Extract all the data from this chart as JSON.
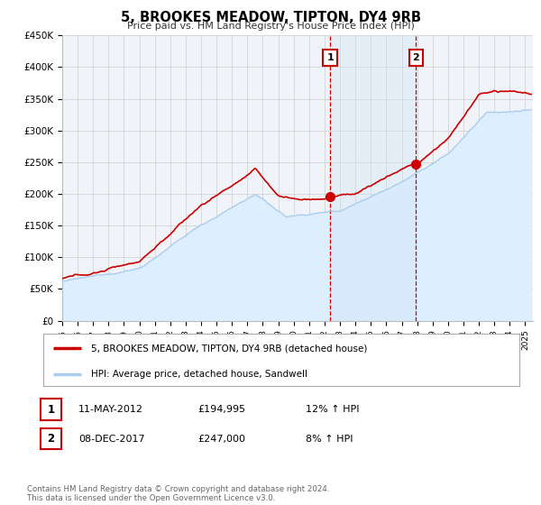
{
  "title": "5, BROOKES MEADOW, TIPTON, DY4 9RB",
  "subtitle": "Price paid vs. HM Land Registry's House Price Index (HPI)",
  "ylim": [
    0,
    450000
  ],
  "yticks": [
    0,
    50000,
    100000,
    150000,
    200000,
    250000,
    300000,
    350000,
    400000,
    450000
  ],
  "ytick_labels": [
    "£0",
    "£50K",
    "£100K",
    "£150K",
    "£200K",
    "£250K",
    "£300K",
    "£350K",
    "£400K",
    "£450K"
  ],
  "xlim_start": 1995.0,
  "xlim_end": 2025.5,
  "xticks": [
    1995,
    1996,
    1997,
    1998,
    1999,
    2000,
    2001,
    2002,
    2003,
    2004,
    2005,
    2006,
    2007,
    2008,
    2009,
    2010,
    2011,
    2012,
    2013,
    2014,
    2015,
    2016,
    2017,
    2018,
    2019,
    2020,
    2021,
    2022,
    2023,
    2024,
    2025
  ],
  "property_color": "#cc0000",
  "hpi_color": "#aaccee",
  "hpi_fill_color": "#ddeeff",
  "event1_x": 2012.36,
  "event1_y": 194995,
  "event2_x": 2017.93,
  "event2_y": 247000,
  "event1_label": "1",
  "event2_label": "2",
  "legend_property": "5, BROOKES MEADOW, TIPTON, DY4 9RB (detached house)",
  "legend_hpi": "HPI: Average price, detached house, Sandwell",
  "table_row1_num": "1",
  "table_row1_date": "11-MAY-2012",
  "table_row1_price": "£194,995",
  "table_row1_hpi": "12% ↑ HPI",
  "table_row2_num": "2",
  "table_row2_date": "08-DEC-2017",
  "table_row2_price": "£247,000",
  "table_row2_hpi": "8% ↑ HPI",
  "footer": "Contains HM Land Registry data © Crown copyright and database right 2024.\nThis data is licensed under the Open Government Licence v3.0.",
  "background_color": "#ffffff",
  "plot_bg_color": "#f0f4f8",
  "vline_color": "#cc0000",
  "span_color": "#d0e4f5"
}
